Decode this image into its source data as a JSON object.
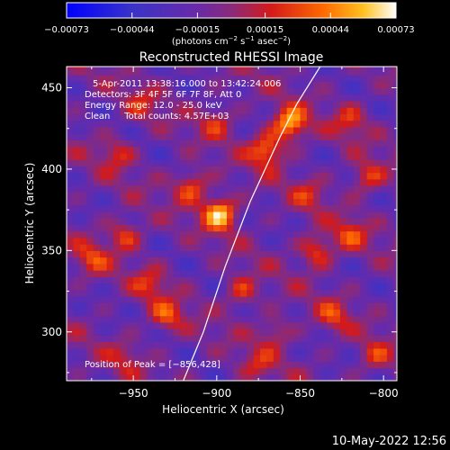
{
  "chart_data": {
    "type": "heatmap",
    "title": "Reconstructed RHESSI Image",
    "xlabel": "Heliocentric X (arcsec)",
    "ylabel": "Heliocentric Y (arcsec)",
    "xlim": [
      -990,
      -792
    ],
    "ylim": [
      270,
      463
    ],
    "x_ticks": [
      {
        "value": -950,
        "label": "−950"
      },
      {
        "value": -900,
        "label": "−900"
      },
      {
        "value": -850,
        "label": "−850"
      },
      {
        "value": -800,
        "label": "−800"
      }
    ],
    "y_ticks": [
      {
        "value": 300,
        "label": "300"
      },
      {
        "value": 350,
        "label": "350"
      },
      {
        "value": 400,
        "label": "400"
      },
      {
        "value": 450,
        "label": "450"
      }
    ],
    "colorbar": {
      "min": -0.00073,
      "max": 0.00073,
      "ticks": [
        {
          "value": -0.00073,
          "label": "−0.00073"
        },
        {
          "value": -0.00044,
          "label": "−0.00044"
        },
        {
          "value": -0.00015,
          "label": "−0.00015"
        },
        {
          "value": 0.00015,
          "label": "0.00015"
        },
        {
          "value": 0.00044,
          "label": "0.00044"
        },
        {
          "value": 0.00073,
          "label": "0.00073"
        }
      ],
      "unit_parts": [
        "(photons cm",
        "−2",
        " s",
        "−1",
        " asec",
        "−2",
        ")"
      ]
    },
    "annotations": {
      "time_range": "5-Apr-2011 13:38:16.000 to 13:42:24.006",
      "detectors": "Detectors: 3F 4F 5F 6F 7F 8F, Att 0",
      "energy": "Energy Range: 12.0 - 25.0 keV",
      "clean": "Clean     Total counts: 4.57E+03",
      "peak": "Position of Peak = [−856,428]"
    },
    "limb_curve": [
      [
        -920,
        270
      ],
      [
        -908,
        300
      ],
      [
        -895,
        340
      ],
      [
        -880,
        380
      ],
      [
        -862,
        420
      ],
      [
        -852,
        440
      ],
      [
        -838,
        463
      ]
    ],
    "hotspots": [
      {
        "x": -898,
        "y": 373,
        "amp": 0.00073
      },
      {
        "x": -856,
        "y": 428,
        "amp": 0.0007
      },
      {
        "x": -870,
        "y": 412,
        "amp": 0.00055
      },
      {
        "x": -915,
        "y": 390,
        "amp": 0.00045
      },
      {
        "x": -955,
        "y": 360,
        "amp": 0.0004
      },
      {
        "x": -975,
        "y": 345,
        "amp": 0.00035
      },
      {
        "x": -940,
        "y": 330,
        "amp": 0.0003
      },
      {
        "x": -930,
        "y": 310,
        "amp": 0.0004
      },
      {
        "x": -885,
        "y": 325,
        "amp": 0.00035
      },
      {
        "x": -865,
        "y": 300,
        "amp": 0.0003
      },
      {
        "x": -840,
        "y": 350,
        "amp": 0.00045
      },
      {
        "x": -820,
        "y": 360,
        "amp": 0.00035
      },
      {
        "x": -830,
        "y": 310,
        "amp": 0.00032
      },
      {
        "x": -810,
        "y": 395,
        "amp": 0.00038
      },
      {
        "x": -820,
        "y": 430,
        "amp": 0.0003
      },
      {
        "x": -900,
        "y": 430,
        "amp": 0.0003
      },
      {
        "x": -945,
        "y": 440,
        "amp": 0.00025
      },
      {
        "x": -960,
        "y": 410,
        "amp": 0.0003
      },
      {
        "x": -955,
        "y": 285,
        "amp": 0.00022
      },
      {
        "x": -875,
        "y": 280,
        "amp": 0.00025
      },
      {
        "x": -805,
        "y": 285,
        "amp": 0.0003
      },
      {
        "x": -845,
        "y": 385,
        "amp": 0.00025
      }
    ]
  },
  "footer": {
    "date": "10-May-2022 12:56"
  }
}
